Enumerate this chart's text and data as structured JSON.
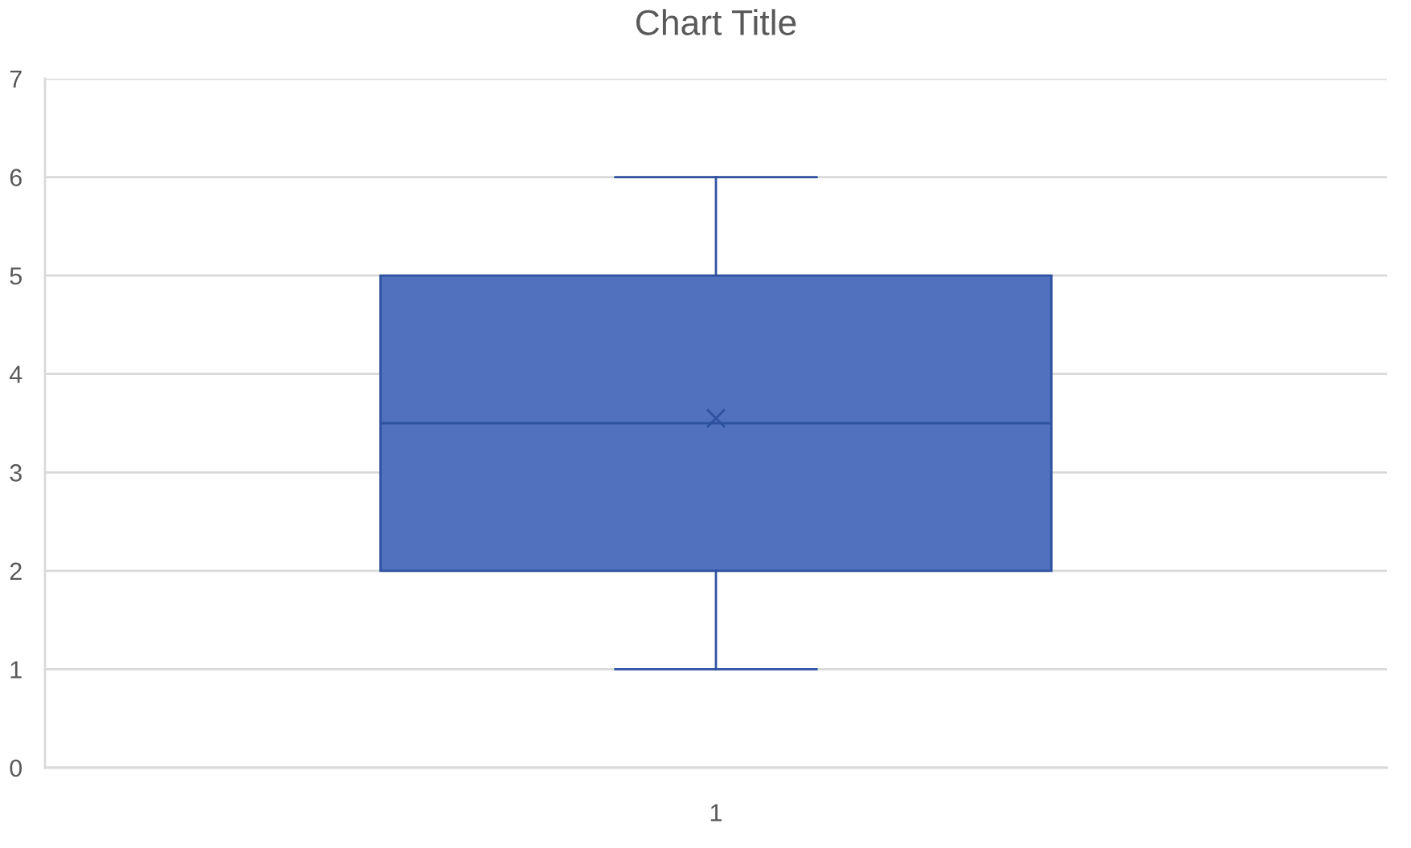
{
  "chart_data": {
    "type": "box",
    "title": "Chart Title",
    "categories": [
      "1"
    ],
    "boxes": [
      {
        "low": 1,
        "q1": 2,
        "median": 3.5,
        "q3": 5,
        "high": 6,
        "mean": 3.55
      }
    ],
    "color": "#5171be",
    "ylim": [
      0,
      7
    ],
    "yticks": [
      0,
      1,
      2,
      3,
      4,
      5,
      6,
      7
    ],
    "grid": "y"
  }
}
